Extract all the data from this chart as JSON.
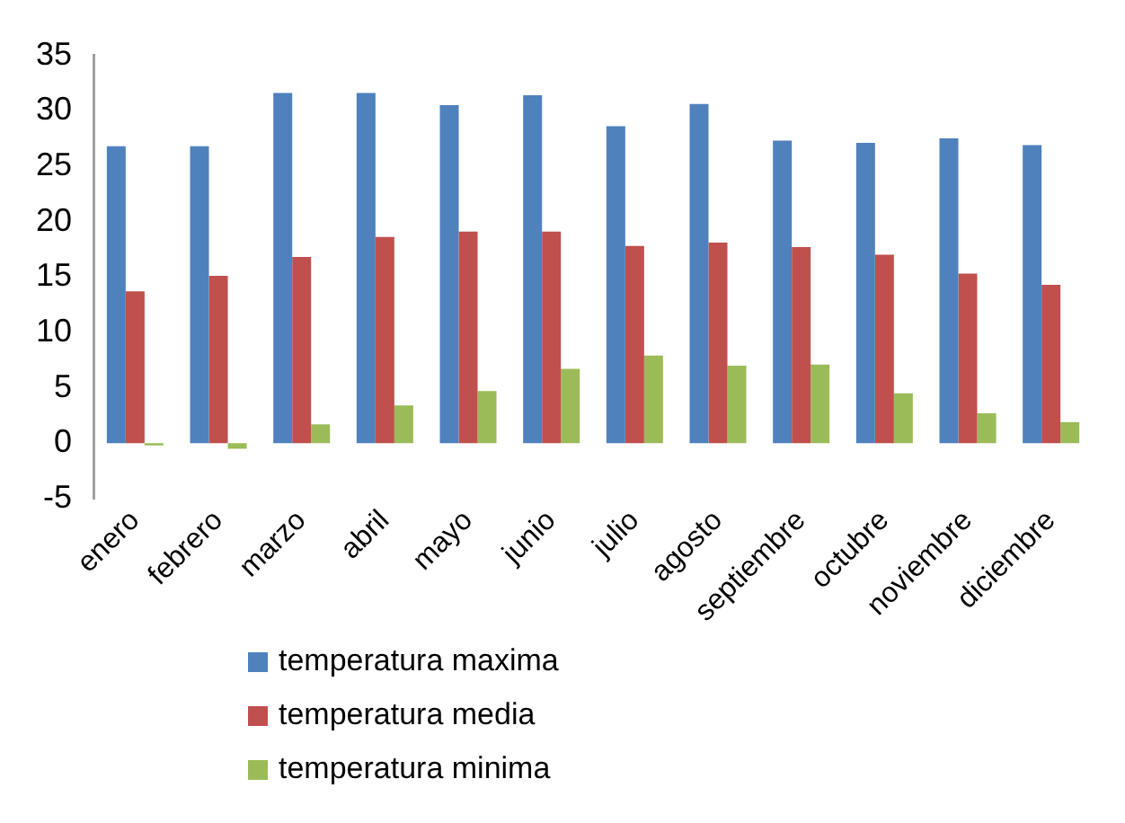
{
  "chart_data": {
    "type": "bar",
    "categories": [
      "enero",
      "febrero",
      "marzo",
      "abril",
      "mayo",
      "junio",
      "julio",
      "agosto",
      "septiembre",
      "octubre",
      "noviembre",
      "diciembre"
    ],
    "series": [
      {
        "name": "temperatura maxima",
        "color": "#4f81bd",
        "values": [
          26.8,
          26.8,
          31.6,
          31.6,
          30.5,
          31.4,
          28.6,
          30.6,
          27.3,
          27.1,
          27.5,
          26.9
        ]
      },
      {
        "name": "temperatura media",
        "color": "#c0504d",
        "values": [
          13.7,
          15.1,
          16.8,
          18.6,
          19.1,
          19.1,
          17.8,
          18.1,
          17.7,
          17.0,
          15.3,
          14.3
        ]
      },
      {
        "name": "temperatura minima",
        "color": "#9bbb59",
        "values": [
          -0.2,
          -0.5,
          1.7,
          3.4,
          4.7,
          6.7,
          7.9,
          7.0,
          7.1,
          4.5,
          2.7,
          1.9
        ]
      }
    ],
    "ylim": [
      -5,
      35
    ],
    "yticks": [
      -5,
      0,
      5,
      10,
      15,
      20,
      25,
      30,
      35
    ],
    "grid": false,
    "legend": "bottom"
  }
}
